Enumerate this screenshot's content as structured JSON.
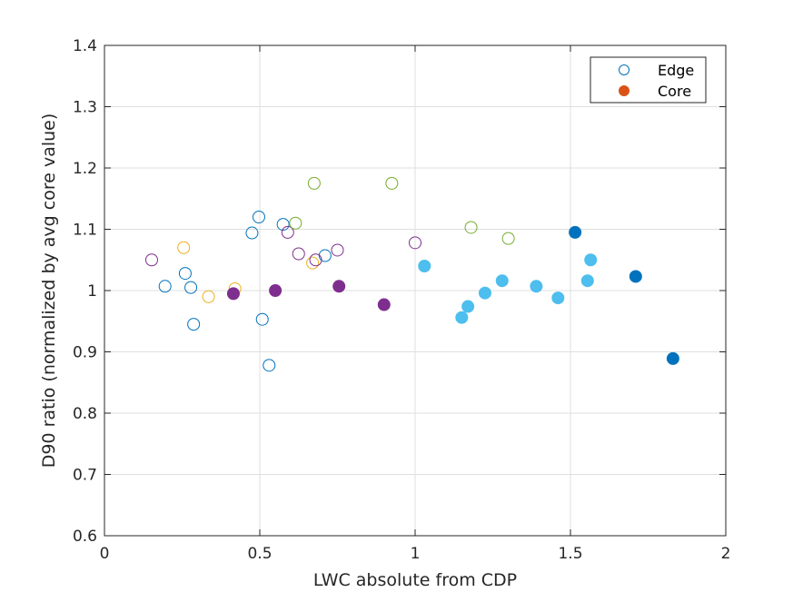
{
  "chart_data": {
    "type": "scatter",
    "title": "",
    "xlabel": "LWC absolute from CDP",
    "ylabel": "D90 ratio (normalized by avg core value)",
    "xlim": [
      0,
      2
    ],
    "ylim": [
      0.6,
      1.4
    ],
    "xticks": [
      0,
      0.5,
      1,
      1.5,
      2
    ],
    "xtick_labels": [
      "0",
      "0.5",
      "1",
      "1.5",
      "2"
    ],
    "yticks": [
      0.6,
      0.7,
      0.8,
      0.9,
      1.0,
      1.1,
      1.2,
      1.3,
      1.4
    ],
    "ytick_labels": [
      "0.6",
      "0.7",
      "0.8",
      "0.9",
      "1",
      "1.1",
      "1.2",
      "1.3",
      "1.4"
    ],
    "grid": true,
    "legend_position": "top-right",
    "legend": [
      {
        "label": "Edge",
        "marker": "open-circle",
        "color": "#0072BD"
      },
      {
        "label": "Core",
        "marker": "filled-circle",
        "color": "#D95319"
      }
    ],
    "series": [
      {
        "color": "#0072BD",
        "filled": false,
        "points": [
          [
            0.195,
            1.007
          ],
          [
            0.26,
            1.028
          ],
          [
            0.278,
            1.005
          ],
          [
            0.287,
            0.945
          ],
          [
            0.475,
            1.094
          ],
          [
            0.497,
            1.12
          ],
          [
            0.508,
            0.953
          ],
          [
            0.53,
            0.878
          ],
          [
            0.575,
            1.108
          ],
          [
            0.71,
            1.057
          ]
        ]
      },
      {
        "color": "#EDB120",
        "filled": false,
        "points": [
          [
            0.255,
            1.07
          ],
          [
            0.335,
            0.99
          ],
          [
            0.42,
            1.003
          ],
          [
            0.67,
            1.045
          ]
        ]
      },
      {
        "color": "#7E2F8E",
        "filled": false,
        "points": [
          [
            0.152,
            1.05
          ],
          [
            0.59,
            1.095
          ],
          [
            0.625,
            1.06
          ],
          [
            0.68,
            1.05
          ],
          [
            0.75,
            1.066
          ],
          [
            1.0,
            1.078
          ]
        ]
      },
      {
        "color": "#77AC30",
        "filled": false,
        "points": [
          [
            0.615,
            1.11
          ],
          [
            0.675,
            1.175
          ],
          [
            0.925,
            1.175
          ],
          [
            1.18,
            1.103
          ],
          [
            1.3,
            1.085
          ]
        ]
      },
      {
        "color": "#7E2F8E",
        "filled": true,
        "points": [
          [
            0.415,
            0.995
          ],
          [
            0.55,
            1.0
          ],
          [
            0.755,
            1.007
          ],
          [
            0.9,
            0.977
          ]
        ]
      },
      {
        "color": "#4DBEEE",
        "filled": true,
        "points": [
          [
            1.03,
            1.04
          ],
          [
            1.15,
            0.956
          ],
          [
            1.17,
            0.974
          ],
          [
            1.225,
            0.996
          ],
          [
            1.28,
            1.016
          ],
          [
            1.39,
            1.007
          ],
          [
            1.46,
            0.988
          ],
          [
            1.555,
            1.016
          ],
          [
            1.565,
            1.05
          ]
        ]
      },
      {
        "color": "#0072BD",
        "filled": true,
        "points": [
          [
            1.515,
            1.095
          ],
          [
            1.71,
            1.023
          ],
          [
            1.83,
            0.889
          ]
        ]
      }
    ]
  }
}
